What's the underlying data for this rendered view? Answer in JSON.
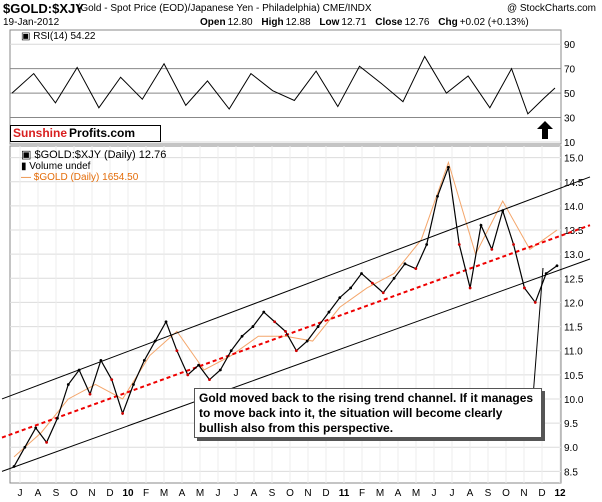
{
  "header": {
    "title": "$GOLD:$XJY",
    "subtitle": "(Gold - Spot Price (EOD)/Japanese Yen - Philadelphia) CME/INDX",
    "copyright": "@ StockCharts.com",
    "date": "19-Jan-2012",
    "ohlc": [
      {
        "key": "Open",
        "value": "12.80"
      },
      {
        "key": "High",
        "value": "12.88"
      },
      {
        "key": "Low",
        "value": "12.71"
      },
      {
        "key": "Close",
        "value": "12.76"
      },
      {
        "key": "Chg",
        "value": "+0.02 (+0.13%)"
      }
    ]
  },
  "brand": {
    "part1": "Sunshine",
    "part2": "Profits.com"
  },
  "rsi_panel": {
    "label": "RSI(14) 54.22"
  },
  "price_legend": {
    "line1": "$GOLD:$XJY (Daily) 12.76",
    "line2": "Volume undef",
    "line3": "$GOLD (Daily) 1654.50"
  },
  "annotation": {
    "text": "Gold moved back to the rising trend channel. If it manages to move back into it, the situation will become clearly bullish also from this perspective."
  },
  "colors": {
    "price": "#000000",
    "down": "#cc0000",
    "gold_overlay": "#f4a66b",
    "midline": "#ee0000",
    "channel": "#000000",
    "grid": "#c8c8c8"
  },
  "chart_data": [
    {
      "type": "line",
      "title": "RSI(14) 54.22",
      "ylim": [
        10,
        100
      ],
      "yticks": [
        10,
        30,
        50,
        70,
        90
      ],
      "reference_lines": [
        30,
        50,
        70
      ],
      "last_value": 54.22,
      "series": [
        {
          "name": "RSI(14)",
          "x": [
            0,
            0.04,
            0.08,
            0.12,
            0.16,
            0.2,
            0.24,
            0.28,
            0.32,
            0.36,
            0.4,
            0.44,
            0.48,
            0.52,
            0.56,
            0.6,
            0.64,
            0.68,
            0.72,
            0.76,
            0.8,
            0.84,
            0.88,
            0.92,
            0.95,
            0.98,
            1.0
          ],
          "values": [
            50,
            66,
            42,
            71,
            38,
            63,
            45,
            74,
            40,
            60,
            37,
            66,
            52,
            44,
            68,
            39,
            72,
            58,
            43,
            80,
            50,
            64,
            38,
            70,
            33,
            46,
            54.22
          ]
        }
      ],
      "annotations": [
        "up-arrow"
      ]
    },
    {
      "type": "line",
      "title": "$GOLD:$XJY (Daily) 12.76",
      "ylim": [
        8.3,
        15.2
      ],
      "yticks": [
        8.5,
        9.0,
        9.5,
        10.0,
        10.5,
        11.0,
        11.5,
        12.0,
        12.5,
        13.0,
        13.5,
        14.0,
        14.5,
        15.0
      ],
      "xticks": [
        "J",
        "A",
        "S",
        "O",
        "N",
        "D",
        "10",
        "F",
        "M",
        "A",
        "M",
        "J",
        "J",
        "A",
        "S",
        "O",
        "N",
        "D",
        "11",
        "F",
        "M",
        "A",
        "M",
        "J",
        "J",
        "A",
        "S",
        "O",
        "N",
        "D",
        "12"
      ],
      "series": [
        {
          "name": "$GOLD:$XJY (Daily)",
          "x": [
            0,
            0.02,
            0.04,
            0.06,
            0.08,
            0.1,
            0.12,
            0.14,
            0.16,
            0.18,
            0.2,
            0.22,
            0.24,
            0.26,
            0.28,
            0.3,
            0.32,
            0.34,
            0.36,
            0.38,
            0.4,
            0.42,
            0.44,
            0.46,
            0.48,
            0.5,
            0.52,
            0.54,
            0.56,
            0.58,
            0.6,
            0.62,
            0.64,
            0.66,
            0.68,
            0.7,
            0.72,
            0.74,
            0.76,
            0.78,
            0.8,
            0.82,
            0.84,
            0.86,
            0.88,
            0.9,
            0.92,
            0.94,
            0.96,
            0.98,
            1.0
          ],
          "values": [
            8.6,
            9.0,
            9.4,
            9.1,
            9.6,
            10.3,
            10.6,
            10.1,
            10.8,
            10.4,
            9.7,
            10.3,
            10.8,
            11.2,
            11.6,
            11.0,
            10.5,
            10.7,
            10.4,
            10.6,
            11.0,
            11.3,
            11.5,
            11.8,
            11.6,
            11.4,
            11.0,
            11.2,
            11.5,
            11.8,
            12.1,
            12.3,
            12.6,
            12.4,
            12.2,
            12.5,
            12.8,
            12.7,
            13.2,
            14.2,
            14.8,
            13.2,
            12.3,
            13.6,
            13.1,
            13.9,
            13.2,
            12.3,
            12.0,
            12.6,
            12.76
          ]
        },
        {
          "name": "$GOLD (Daily)",
          "x": [
            0,
            0.05,
            0.1,
            0.15,
            0.2,
            0.25,
            0.3,
            0.35,
            0.4,
            0.45,
            0.5,
            0.55,
            0.6,
            0.65,
            0.7,
            0.75,
            0.8,
            0.85,
            0.9,
            0.95,
            1.0
          ],
          "values": [
            8.8,
            9.3,
            10.0,
            10.3,
            10.0,
            10.9,
            11.4,
            10.6,
            10.9,
            11.3,
            11.3,
            11.2,
            11.9,
            12.3,
            12.6,
            13.3,
            14.9,
            13.0,
            14.1,
            13.1,
            13.5
          ]
        }
      ],
      "channel": {
        "upper": [
          10.0,
          14.6
        ],
        "middle": [
          9.2,
          13.6
        ],
        "lower": [
          8.5,
          12.9
        ]
      }
    }
  ]
}
